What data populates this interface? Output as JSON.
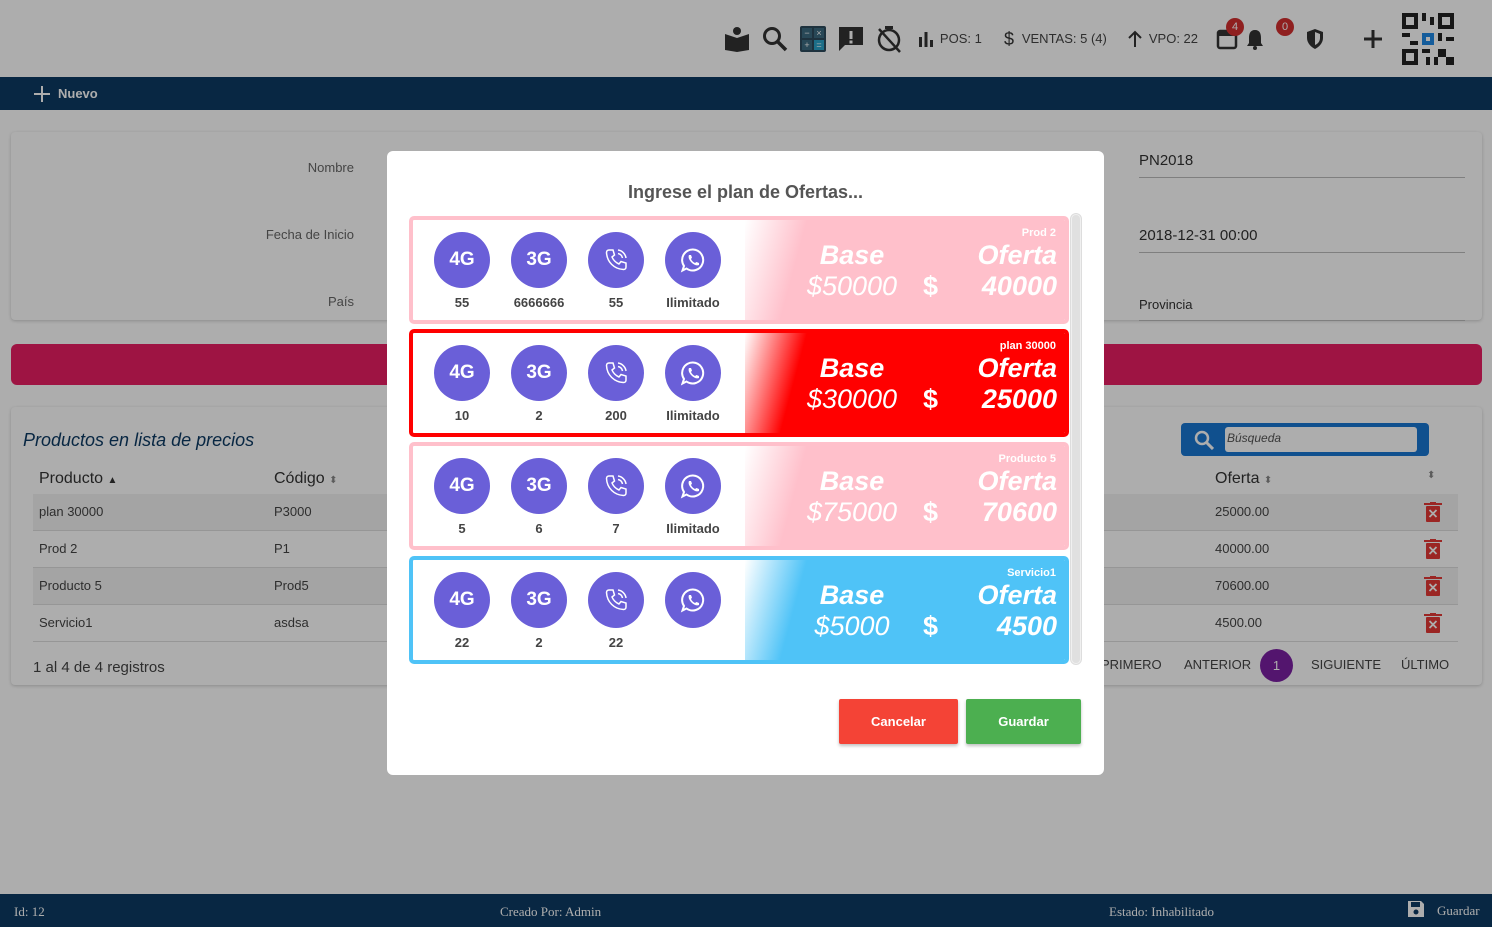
{
  "topbar": {
    "pos": "POS: 1",
    "ventas": "VENTAS: 5 (4)",
    "vpo": "VPO: 22",
    "calendar_badge": "4",
    "bell_badge": "0"
  },
  "navbar": {
    "new_label": "Nuevo"
  },
  "form": {
    "nombre_label": "Nombre",
    "fecha_label": "Fecha de Inicio",
    "pais_label": "País",
    "code_value": "PN2018",
    "fecha_fin_value": "2018-12-31 00:00",
    "provincia_value": "Provincia"
  },
  "table": {
    "title": "Productos en lista de precios",
    "search_placeholder": "Búsqueda",
    "columns": [
      "Producto",
      "Código",
      "Oferta"
    ],
    "rows": [
      {
        "producto": "plan 30000",
        "codigo": "P3000",
        "oferta": "25000.00"
      },
      {
        "producto": "Prod 2",
        "codigo": "P1",
        "oferta": "40000.00"
      },
      {
        "producto": "Producto 5",
        "codigo": "Prod5",
        "oferta": "70600.00"
      },
      {
        "producto": "Servicio1",
        "codigo": "asdsa",
        "oferta": "4500.00"
      }
    ],
    "info": "1 al 4 de 4 registros",
    "pager": {
      "first": "PRIMERO",
      "prev": "ANTERIOR",
      "current": "1",
      "next": "SIGUIENTE",
      "last": "ÚLTIMO"
    }
  },
  "footer": {
    "id": "Id: 12",
    "creado": "Creado Por: Admin",
    "estado": "Estado: Inhabilitado",
    "guardar": "Guardar"
  },
  "modal": {
    "title": "Ingrese el plan de Ofertas...",
    "cancel": "Cancelar",
    "save": "Guardar",
    "feature_labels": {
      "f4g": "4G",
      "f3g": "3G"
    },
    "base_label": "Base",
    "oferta_label": "Oferta",
    "currency": "$",
    "plans": [
      {
        "name": "Prod 2",
        "v4g": "55",
        "v3g": "6666666",
        "calls": "55",
        "whatsapp": "Ilimitado",
        "base": "$50000",
        "oferta": "40000",
        "color": "#ffc0cb",
        "selected": false
      },
      {
        "name": "plan 30000",
        "v4g": "10",
        "v3g": "2",
        "calls": "200",
        "whatsapp": "Ilimitado",
        "base": "$30000",
        "oferta": "25000",
        "color": "#ff0000",
        "selected": true
      },
      {
        "name": "Producto 5",
        "v4g": "5",
        "v3g": "6",
        "calls": "7",
        "whatsapp": "Ilimitado",
        "base": "$75000",
        "oferta": "70600",
        "color": "#ffc0cb",
        "selected": false
      },
      {
        "name": "Servicio1",
        "v4g": "22",
        "v3g": "2",
        "calls": "22",
        "whatsapp": "",
        "base": "$5000",
        "oferta": "4500",
        "color": "#4fc3f7",
        "selected": false
      }
    ]
  }
}
